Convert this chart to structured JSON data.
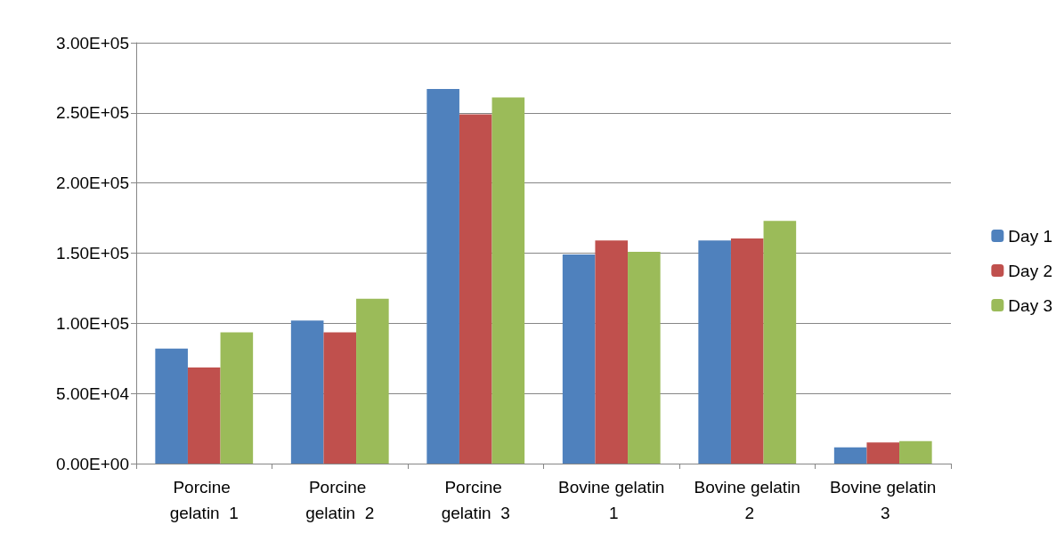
{
  "chart_data": {
    "type": "bar",
    "categories": [
      "Porcine gelatin  1",
      "Porcine gelatin  2",
      "Porcine gelatin  3",
      "Bovine gelatin 1",
      "Bovine gelatin 2",
      "Bovine gelatin 3"
    ],
    "series": [
      {
        "name": "Day 1",
        "color": "#4f81bd",
        "values": [
          82000,
          102000,
          267000,
          149000,
          159000,
          11500
        ]
      },
      {
        "name": "Day 2",
        "color": "#c0504d",
        "values": [
          68500,
          93500,
          249000,
          159000,
          160500,
          15000
        ]
      },
      {
        "name": "Day 3",
        "color": "#9bbb59",
        "values": [
          93500,
          117500,
          261000,
          151000,
          173000,
          16000
        ]
      }
    ],
    "ylim": [
      0,
      300000
    ],
    "yticks": [
      {
        "value": 0,
        "label": "0.00E+00"
      },
      {
        "value": 50000,
        "label": "5.00E+04"
      },
      {
        "value": 100000,
        "label": "1.00E+05"
      },
      {
        "value": 150000,
        "label": "1.50E+05"
      },
      {
        "value": 200000,
        "label": "2.00E+05"
      },
      {
        "value": 250000,
        "label": "2.50E+05"
      },
      {
        "value": 300000,
        "label": "3.00E+05"
      }
    ],
    "grid": "y",
    "legend": "right"
  }
}
